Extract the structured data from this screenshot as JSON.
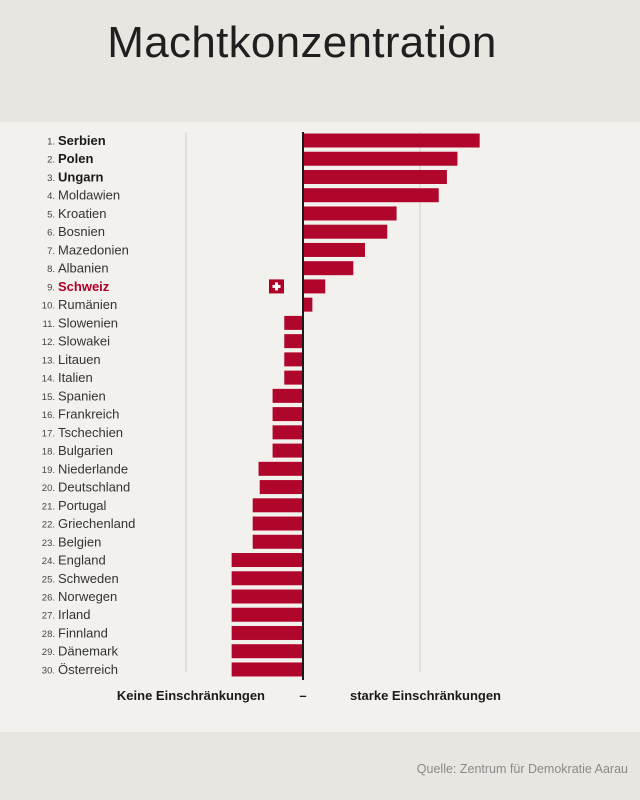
{
  "title": "Machtkonzentration",
  "source": "Quelle: Zentrum für Demokratie Aarau",
  "colors": {
    "bar": "#b0062c",
    "axis": "#1a1a1a",
    "grid": "#cfcfcf",
    "highlight": "#b0002a"
  },
  "chart_data": {
    "type": "bar",
    "orientation": "horizontal",
    "title": "Machtkonzentration",
    "xlabel_left": "Keine Einschränkungen",
    "xlabel_center": "–",
    "xlabel_right": "starke Einschränkungen",
    "xlim": [
      -1.5,
      3.2
    ],
    "gridlines": [
      -1,
      1
    ],
    "highlight": "Schweiz",
    "highlight_icon": "swiss-flag-icon",
    "bold_top": 3,
    "categories": [
      "Serbien",
      "Polen",
      "Ungarn",
      "Moldawien",
      "Kroatien",
      "Bosnien",
      "Mazedonien",
      "Albanien",
      "Schweiz",
      "Rumänien",
      "Slowenien",
      "Slowakei",
      "Litauen",
      "Italien",
      "Spanien",
      "Frankreich",
      "Tschechien",
      "Bulgarien",
      "Niederlande",
      "Deutschland",
      "Portugal",
      "Griechenland",
      "Belgien",
      "England",
      "Schweden",
      "Norwegen",
      "Irland",
      "Finnland",
      "Dänemark",
      "Österreich"
    ],
    "ranks": [
      "1.",
      "2.",
      "3.",
      "4.",
      "5.",
      "6.",
      "7.",
      "8.",
      "9.",
      "10.",
      "11.",
      "12.",
      "13.",
      "14.",
      "15.",
      "16.",
      "17.",
      "18.",
      "19.",
      "20.",
      "21.",
      "22.",
      "23.",
      "24.",
      "25.",
      "26.",
      "27.",
      "28.",
      "29.",
      "30."
    ],
    "values": [
      1.51,
      1.32,
      1.23,
      1.16,
      0.8,
      0.72,
      0.53,
      0.43,
      0.19,
      0.08,
      -0.16,
      -0.16,
      -0.16,
      -0.16,
      -0.26,
      -0.26,
      -0.26,
      -0.26,
      -0.38,
      -0.37,
      -0.43,
      -0.43,
      -0.43,
      -0.61,
      -0.61,
      -0.61,
      -0.61,
      -0.61,
      -0.61,
      -0.61
    ]
  }
}
